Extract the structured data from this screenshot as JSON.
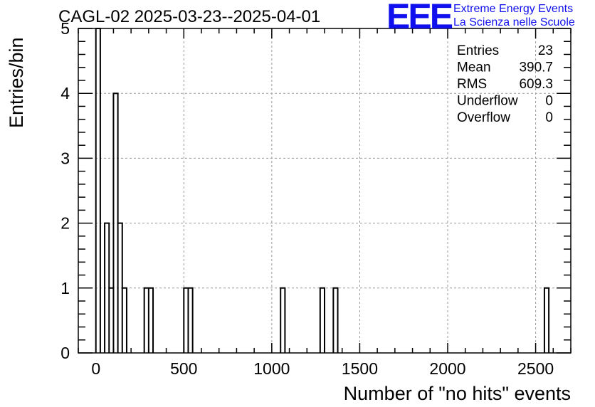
{
  "header": {
    "title": "CAGL-02 2025-03-23--2025-04-01",
    "logo_mark": "EEE",
    "logo_line1": "Extreme Energy Events",
    "logo_line2": "La Scienza nelle Scuole",
    "logo_color": "#1010ee"
  },
  "stats": [
    {
      "label": "Entries",
      "value": "23"
    },
    {
      "label": "Mean",
      "value": "390.7"
    },
    {
      "label": "RMS",
      "value": "609.3"
    },
    {
      "label": "Underflow",
      "value": "0"
    },
    {
      "label": "Overflow",
      "value": "0"
    }
  ],
  "chart_data": {
    "type": "bar",
    "subtype": "histogram",
    "xlabel": "Number of \"no hits\" events",
    "ylabel": "Entries/bin",
    "xlim": [
      -100,
      2700
    ],
    "ylim": [
      0,
      5
    ],
    "x_ticks": [
      0,
      500,
      1000,
      1500,
      2000,
      2500
    ],
    "y_ticks": [
      0,
      1,
      2,
      3,
      4,
      5
    ],
    "grid": true,
    "bin_width": 25,
    "bins": [
      {
        "x0": 0,
        "x1": 25,
        "count": 5
      },
      {
        "x0": 25,
        "x1": 50,
        "count": 0
      },
      {
        "x0": 50,
        "x1": 75,
        "count": 2
      },
      {
        "x0": 75,
        "x1": 100,
        "count": 1
      },
      {
        "x0": 100,
        "x1": 125,
        "count": 4
      },
      {
        "x0": 125,
        "x1": 150,
        "count": 2
      },
      {
        "x0": 150,
        "x1": 175,
        "count": 1
      },
      {
        "x0": 275,
        "x1": 300,
        "count": 1
      },
      {
        "x0": 300,
        "x1": 325,
        "count": 1
      },
      {
        "x0": 500,
        "x1": 525,
        "count": 1
      },
      {
        "x0": 525,
        "x1": 550,
        "count": 1
      },
      {
        "x0": 1050,
        "x1": 1075,
        "count": 1
      },
      {
        "x0": 1275,
        "x1": 1300,
        "count": 1
      },
      {
        "x0": 1350,
        "x1": 1375,
        "count": 1
      },
      {
        "x0": 2550,
        "x1": 2575,
        "count": 1
      }
    ]
  }
}
